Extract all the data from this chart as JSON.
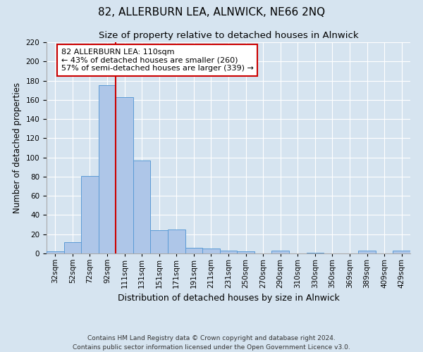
{
  "title": "82, ALLERBURN LEA, ALNWICK, NE66 2NQ",
  "subtitle": "Size of property relative to detached houses in Alnwick",
  "xlabel": "Distribution of detached houses by size in Alnwick",
  "ylabel": "Number of detached properties",
  "bar_labels": [
    "32sqm",
    "52sqm",
    "72sqm",
    "92sqm",
    "111sqm",
    "131sqm",
    "151sqm",
    "171sqm",
    "191sqm",
    "211sqm",
    "231sqm",
    "250sqm",
    "270sqm",
    "290sqm",
    "310sqm",
    "330sqm",
    "350sqm",
    "369sqm",
    "389sqm",
    "409sqm",
    "429sqm"
  ],
  "bar_values": [
    2,
    12,
    81,
    175,
    163,
    97,
    24,
    25,
    6,
    5,
    3,
    2,
    0,
    3,
    0,
    1,
    0,
    0,
    3,
    0,
    3
  ],
  "bar_color": "#aec6e8",
  "bar_edgecolor": "#5b9bd5",
  "vline_color": "#cc0000",
  "vline_x_index": 4,
  "annotation_text": "82 ALLERBURN LEA: 110sqm\n← 43% of detached houses are smaller (260)\n57% of semi-detached houses are larger (339) →",
  "annotation_box_color": "#ffffff",
  "annotation_box_edgecolor": "#cc0000",
  "ylim": [
    0,
    220
  ],
  "yticks": [
    0,
    20,
    40,
    60,
    80,
    100,
    120,
    140,
    160,
    180,
    200,
    220
  ],
  "background_color": "#d6e4f0",
  "plot_bg_color": "#d6e4f0",
  "footer_text": "Contains HM Land Registry data © Crown copyright and database right 2024.\nContains public sector information licensed under the Open Government Licence v3.0.",
  "title_fontsize": 11,
  "subtitle_fontsize": 9.5,
  "xlabel_fontsize": 9,
  "ylabel_fontsize": 8.5,
  "annotation_fontsize": 8,
  "footer_fontsize": 6.5,
  "tick_fontsize": 7.5
}
